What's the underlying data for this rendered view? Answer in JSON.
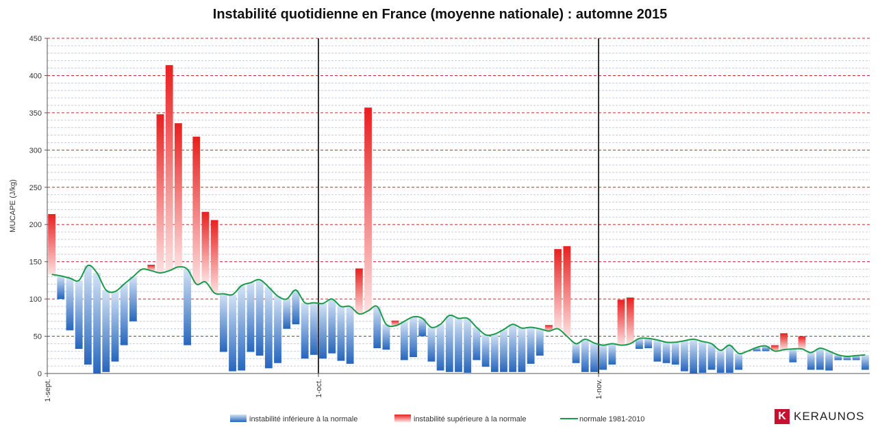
{
  "chart_data": {
    "type": "bar",
    "title": "Instabilité quotidienne en France (moyenne nationale) : automne 2015",
    "ylabel": "MUCAPE (J/kg)",
    "xlabel": "",
    "ylim": [
      0,
      450
    ],
    "yticks": [
      0,
      50,
      100,
      150,
      200,
      250,
      300,
      350,
      400,
      450
    ],
    "grid": true,
    "x_tick_labels": [
      {
        "label": "1-sept.",
        "day_index": 0
      },
      {
        "label": "1-oct.",
        "day_index": 30
      },
      {
        "label": "1-nov.",
        "day_index": 61
      }
    ],
    "month_separators": [
      30,
      61
    ],
    "days": 91,
    "values": [
      214,
      100,
      58,
      33,
      12,
      0,
      2,
      16,
      38,
      70,
      140,
      146,
      348,
      414,
      336,
      38,
      318,
      217,
      206,
      29,
      3,
      4,
      29,
      24,
      7,
      14,
      60,
      66,
      20,
      25,
      20,
      27,
      17,
      13,
      141,
      357,
      34,
      32,
      71,
      18,
      22,
      50,
      16,
      4,
      2,
      2,
      1,
      18,
      9,
      2,
      2,
      2,
      2,
      13,
      24,
      65,
      167,
      171,
      14,
      2,
      2,
      5,
      12,
      99,
      102,
      33,
      34,
      16,
      14,
      12,
      3,
      0,
      1,
      5,
      1,
      1,
      5,
      30,
      30,
      30,
      38,
      54,
      15,
      50,
      5,
      5,
      4,
      18,
      18,
      18,
      5
    ],
    "normal": [
      133,
      131,
      128,
      125,
      145,
      135,
      112,
      110,
      120,
      130,
      140,
      138,
      135,
      138,
      143,
      140,
      120,
      123,
      108,
      107,
      106,
      118,
      122,
      126,
      116,
      104,
      100,
      112,
      95,
      95,
      94,
      100,
      90,
      90,
      80,
      84,
      90,
      66,
      64,
      70,
      76,
      74,
      62,
      66,
      78,
      74,
      74,
      62,
      52,
      53,
      59,
      66,
      61,
      62,
      60,
      57,
      60,
      50,
      40,
      46,
      41,
      38,
      40,
      38,
      40,
      47,
      47,
      45,
      42,
      42,
      44,
      46,
      43,
      40,
      31,
      38,
      27,
      30,
      35,
      37,
      30,
      32,
      33,
      33,
      28,
      34,
      30,
      25,
      23,
      24,
      25
    ],
    "series": [
      {
        "name": "instabilité inférieure à la normale",
        "color": "#2b6fc4"
      },
      {
        "name": "instabilité supérieure à la normale",
        "color": "#e62a2a"
      },
      {
        "name": "normale 1981-2010",
        "color": "#1a9a48"
      }
    ]
  },
  "brand": {
    "name": "KERAUNOS",
    "logo_letter": "K"
  },
  "colors": {
    "below_dark": "#2b6fc4",
    "below_light": "#c9dcf3",
    "above_dark": "#e62a2a",
    "above_light": "#fbd6d6",
    "normal_line": "#1a9a48",
    "grid_major": "#c62828",
    "grid_minor": "#b0bbc8",
    "separator": "#000000"
  }
}
